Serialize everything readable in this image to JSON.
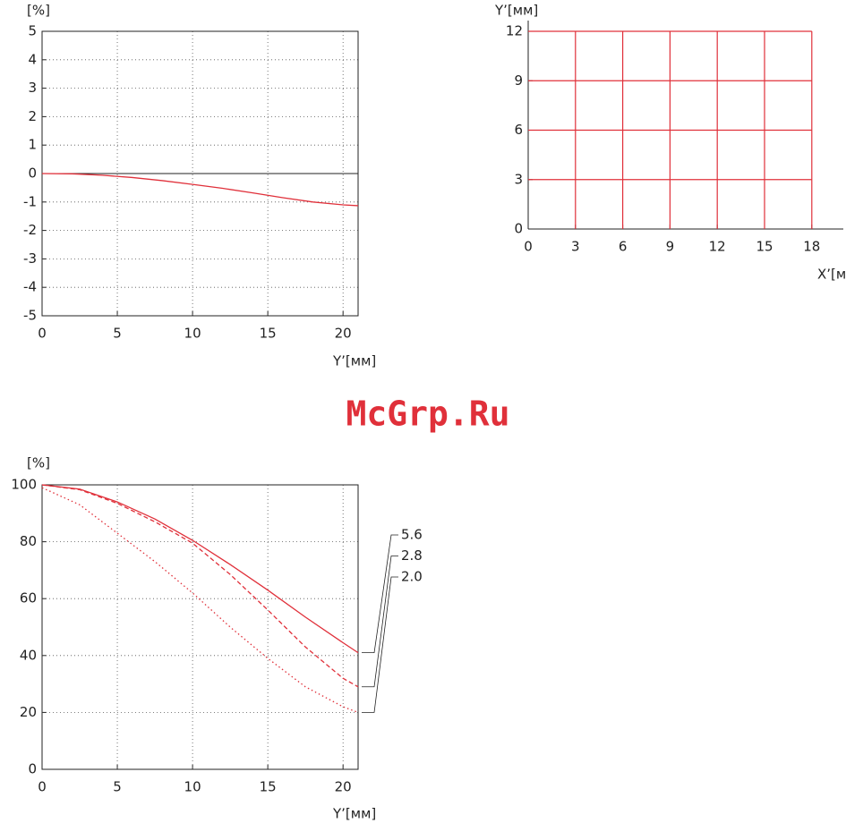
{
  "watermark": "McGrp.Ru",
  "chart_data": [
    {
      "type": "line",
      "y_label": "[%]",
      "x_label": "Y’[мм]",
      "xlim": [
        0,
        21
      ],
      "xticks": [
        0,
        5,
        10,
        15,
        20
      ],
      "ylim": [
        -5,
        5
      ],
      "yticks": [
        -5,
        -4,
        -3,
        -2,
        -1,
        0,
        1,
        2,
        3,
        4,
        5
      ],
      "grid": true,
      "zero_line": true,
      "color": "#e0303a",
      "x": [
        0,
        2,
        4,
        6,
        8,
        10,
        12,
        14,
        16,
        18,
        20,
        21
      ],
      "values": [
        0,
        -0.01,
        -0.06,
        -0.14,
        -0.25,
        -0.38,
        -0.52,
        -0.68,
        -0.85,
        -1.0,
        -1.1,
        -1.13
      ]
    },
    {
      "type": "grid",
      "y_label": "Y’[мм]",
      "x_label": "X’[мм]",
      "xlim": [
        0,
        20
      ],
      "xticks": [
        0,
        3,
        6,
        9,
        12,
        15,
        18
      ],
      "ylim": [
        0,
        12
      ],
      "yticks": [
        0,
        3,
        6,
        9,
        12
      ],
      "color": "#e0303a",
      "grid_x": [
        3,
        6,
        9,
        12,
        15,
        18
      ],
      "grid_y": [
        3,
        6,
        9,
        12
      ]
    },
    {
      "type": "line",
      "y_label": "[%]",
      "x_label": "Y’[мм]",
      "xlim": [
        0,
        21
      ],
      "xticks": [
        0,
        5,
        10,
        15,
        20
      ],
      "ylim": [
        0,
        100
      ],
      "yticks": [
        0,
        20,
        40,
        60,
        80,
        100
      ],
      "grid": true,
      "x": [
        0,
        2.5,
        5,
        7.5,
        10,
        12.5,
        15,
        17.5,
        20,
        21
      ],
      "series": [
        {
          "name": "5.6",
          "color": "#e0303a",
          "dash": "solid",
          "values": [
            100,
            98.5,
            94,
            88,
            80.5,
            72,
            63,
            53.5,
            44.5,
            41
          ]
        },
        {
          "name": "2.8",
          "color": "#e0303a",
          "dash": "dashed",
          "values": [
            100,
            98.3,
            93.5,
            87,
            79.5,
            68.5,
            56,
            43,
            32,
            29
          ]
        },
        {
          "name": "2.0",
          "color": "#e0303a",
          "dash": "dotted",
          "values": [
            99,
            93,
            83,
            73,
            62,
            50,
            39,
            29,
            22,
            20
          ]
        }
      ]
    }
  ]
}
